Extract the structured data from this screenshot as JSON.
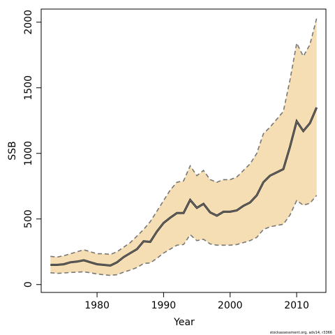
{
  "chart_data": {
    "type": "line",
    "xlabel": "Year",
    "ylabel": "SSB",
    "xlim": [
      1971.6,
      2014.4
    ],
    "ylim": [
      -60,
      2100
    ],
    "x_ticks": [
      1980,
      1990,
      2000,
      2010
    ],
    "y_ticks": [
      0,
      500,
      1000,
      1500,
      2000
    ],
    "x_tick_labels": [
      "1980",
      "1990",
      "2000",
      "2010"
    ],
    "y_tick_labels": [
      "0",
      "500",
      "1000",
      "1500",
      "2000"
    ],
    "band_color": "#f5deb3",
    "line_color": "#333333",
    "bound_color": "#777777",
    "x": [
      1973,
      1974,
      1975,
      1976,
      1977,
      1978,
      1979,
      1980,
      1981,
      1982,
      1983,
      1984,
      1985,
      1986,
      1987,
      1988,
      1989,
      1990,
      1991,
      1992,
      1993,
      1994,
      1995,
      1996,
      1997,
      1998,
      1999,
      2000,
      2001,
      2002,
      2003,
      2004,
      2005,
      2006,
      2007,
      2008,
      2009,
      2010,
      2011,
      2012,
      2013
    ],
    "series": [
      {
        "values": [
          150,
          150,
          155,
          170,
          175,
          185,
          170,
          155,
          150,
          145,
          170,
          210,
          240,
          270,
          330,
          325,
          405,
          470,
          510,
          545,
          545,
          645,
          585,
          615,
          550,
          525,
          555,
          555,
          565,
          600,
          625,
          680,
          780,
          830,
          855,
          880,
          1050,
          1245,
          1170,
          1230,
          1350
        ]
      },
      {
        "values": [
          90,
          85,
          88,
          92,
          95,
          97,
          90,
          80,
          75,
          70,
          75,
          95,
          110,
          130,
          160,
          165,
          200,
          240,
          270,
          300,
          305,
          380,
          335,
          345,
          310,
          300,
          300,
          300,
          305,
          320,
          335,
          360,
          420,
          440,
          450,
          460,
          530,
          640,
          605,
          620,
          680
        ]
      },
      {
        "values": [
          215,
          210,
          220,
          235,
          250,
          265,
          250,
          235,
          235,
          230,
          250,
          285,
          320,
          370,
          420,
          480,
          560,
          640,
          720,
          780,
          790,
          905,
          830,
          870,
          800,
          780,
          800,
          800,
          820,
          870,
          920,
          1000,
          1150,
          1200,
          1260,
          1320,
          1560,
          1840,
          1740,
          1830,
          2030
        ]
      }
    ]
  },
  "credit": "stockassessment.org, adv14, r3366"
}
